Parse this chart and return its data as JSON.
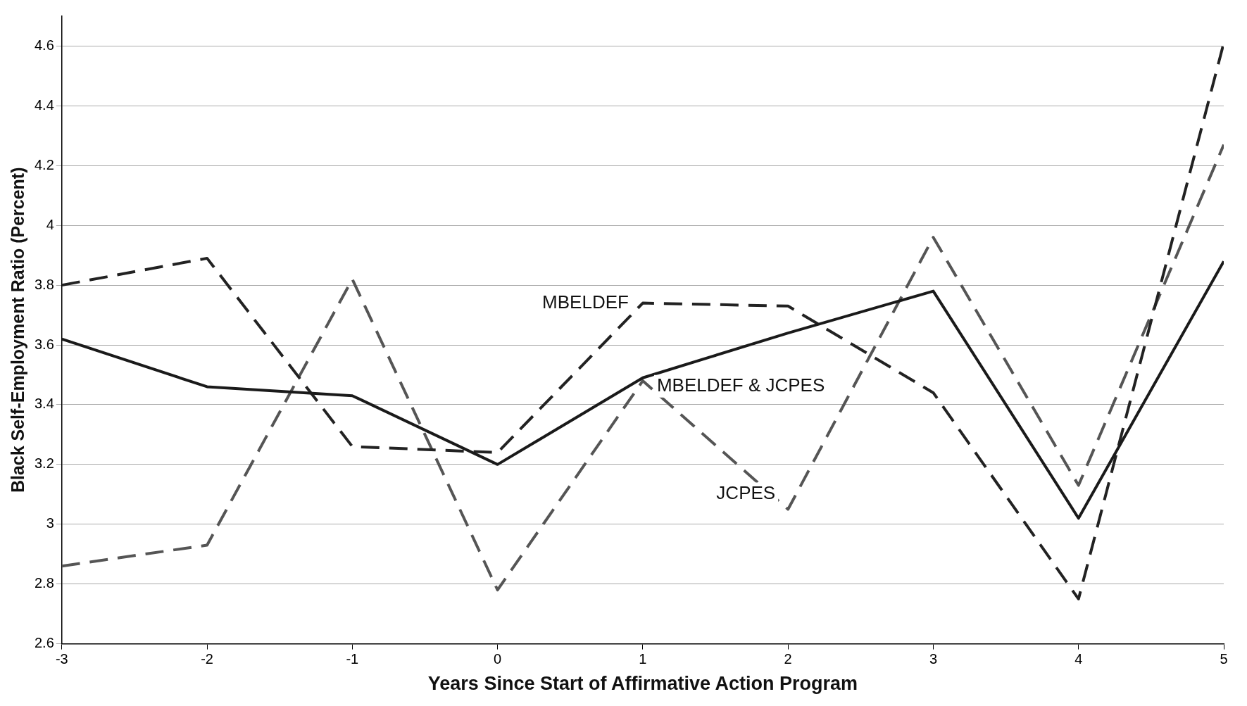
{
  "chart_data": {
    "type": "line",
    "xlabel": "Years Since Start of Affirmative Action Program",
    "ylabel": "Black Self-Employment Ratio (Percent)",
    "x": [
      -3,
      -2,
      -1,
      0,
      1,
      2,
      3,
      4,
      5
    ],
    "series": [
      {
        "name": "MBELDEF & JCPES",
        "color": "#1a1a1a",
        "line_style": "solid",
        "values": [
          3.62,
          3.46,
          3.43,
          3.2,
          3.49,
          3.64,
          3.78,
          3.02,
          3.88
        ]
      },
      {
        "name": "MBELDEF",
        "color": "#222222",
        "line_style": "dashed",
        "values": [
          3.8,
          3.89,
          3.26,
          3.24,
          3.74,
          3.73,
          3.44,
          2.75,
          4.61
        ]
      },
      {
        "name": "JCPES",
        "color": "#555555",
        "line_style": "dashed",
        "values": [
          2.86,
          2.93,
          3.82,
          2.78,
          3.48,
          3.05,
          3.96,
          3.13,
          4.27
        ]
      }
    ],
    "xlim": [
      -3,
      5
    ],
    "xticks": [
      -3,
      -2,
      -1,
      0,
      1,
      2,
      3,
      4,
      5
    ],
    "ylim": [
      2.6,
      4.7
    ],
    "yticks": [
      {
        "value": 2.6,
        "label": "2.6"
      },
      {
        "value": 2.8,
        "label": "2.8"
      },
      3,
      {
        "value": 3.2,
        "label": "3.2"
      },
      {
        "value": 3.4,
        "label": "3.4"
      },
      {
        "value": 3.6,
        "label": "3.6"
      },
      {
        "value": 3.8,
        "label": "3.8"
      },
      4,
      {
        "value": 4.2,
        "label": "4.2"
      },
      {
        "value": 4.4,
        "label": "4.4"
      },
      {
        "value": 4.6,
        "label": "4.6"
      }
    ],
    "grid": "y",
    "legend": false,
    "marker": "none"
  }
}
